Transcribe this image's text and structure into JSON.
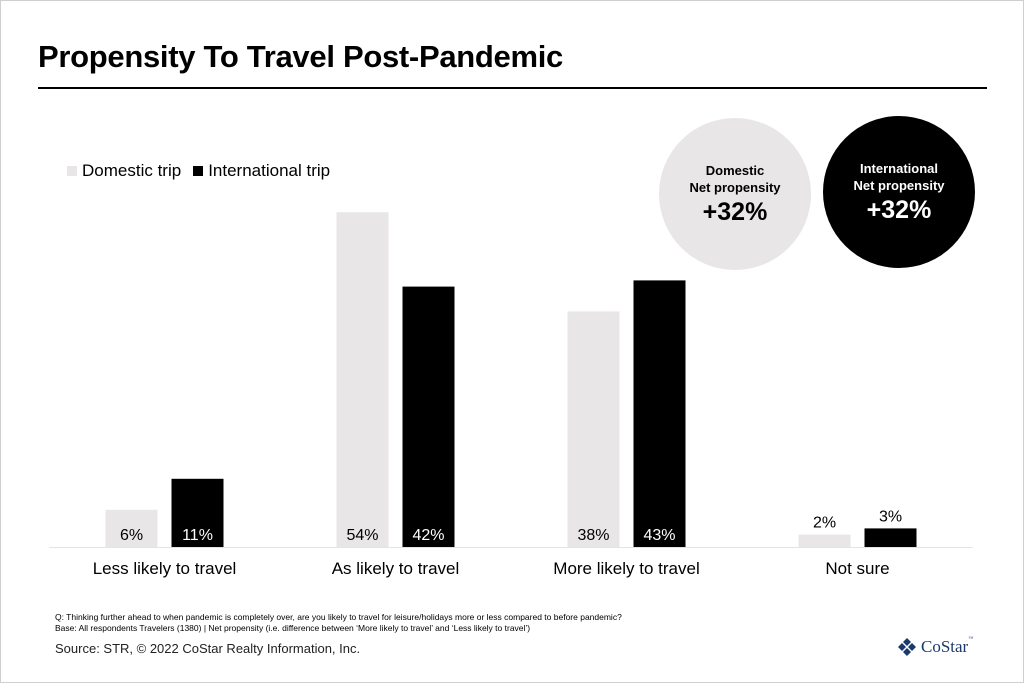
{
  "title": "Propensity To Travel Post-Pandemic",
  "legend": [
    {
      "label": "Domestic trip",
      "color": "#e8e6e6"
    },
    {
      "label": "International trip",
      "color": "#000000"
    }
  ],
  "callouts": {
    "domestic": {
      "line1": "Domestic",
      "line2": "Net propensity",
      "value": "+32%"
    },
    "international": {
      "line1": "International",
      "line2": "Net propensity",
      "value": "+32%"
    }
  },
  "chart_data": {
    "type": "bar",
    "title": "Propensity To Travel Post-Pandemic",
    "xlabel": "",
    "ylabel": "",
    "categories": [
      "Less likely to travel",
      "As likely to travel",
      "More likely to travel",
      "Not sure"
    ],
    "series": [
      {
        "name": "Domestic trip",
        "color": "#e8e6e6",
        "values": [
          6,
          54,
          38,
          2
        ],
        "labels": [
          "6%",
          "54%",
          "38%",
          "2%"
        ]
      },
      {
        "name": "International trip",
        "color": "#000000",
        "values": [
          11,
          42,
          43,
          3
        ],
        "labels": [
          "11%",
          "42%",
          "43%",
          "3%"
        ]
      }
    ],
    "ylim": [
      0,
      60
    ],
    "grid": false,
    "legend_position": "top-left"
  },
  "footnotes": {
    "question": "Q: Thinking further ahead to when pandemic is completely over, are you likely to travel for leisure/holidays more or less compared to before pandemic?",
    "base": "Base: All respondents Travelers (1380) | Net propensity (i.e. difference between ‘More likely to travel’ and ‘Less likely to travel’)"
  },
  "source": "Source: STR, © 2022  CoStar Realty Information, Inc.",
  "logo": {
    "text": "CoStar",
    "tm": "™",
    "color": "#1b3a6b"
  }
}
